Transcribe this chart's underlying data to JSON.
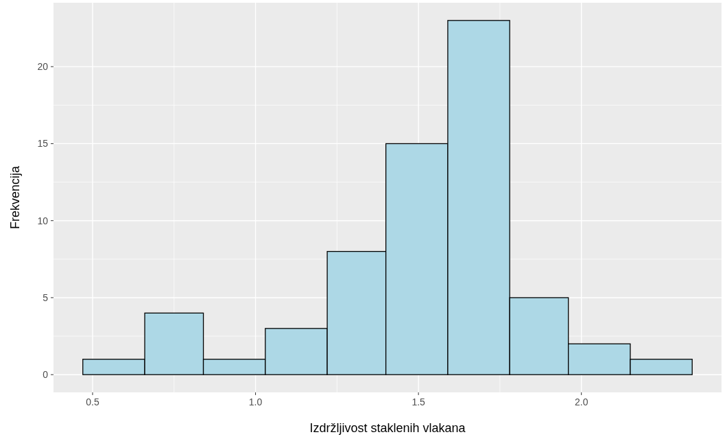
{
  "chart_data": {
    "type": "histogram",
    "xlabel": "Izdržljivost staklenih vlakana",
    "ylabel": "Frekvencija",
    "bins": [
      0.47,
      0.66,
      0.84,
      1.03,
      1.22,
      1.4,
      1.59,
      1.78,
      1.96,
      2.15,
      2.34
    ],
    "values": [
      1,
      4,
      1,
      3,
      8,
      15,
      23,
      5,
      2,
      1
    ],
    "color": "#add8e6",
    "xlim": [
      0.38,
      2.43
    ],
    "xticks": [
      {
        "value": 0.5,
        "label": "0.5"
      },
      {
        "value": 1,
        "label": "1.0"
      },
      {
        "value": 1.5,
        "label": "1.5"
      },
      {
        "value": 2,
        "label": "2.0"
      }
    ],
    "ylim": [
      -1.15,
      24.15
    ],
    "yticks": [
      0,
      5,
      10,
      15,
      20
    ],
    "grid": true
  }
}
